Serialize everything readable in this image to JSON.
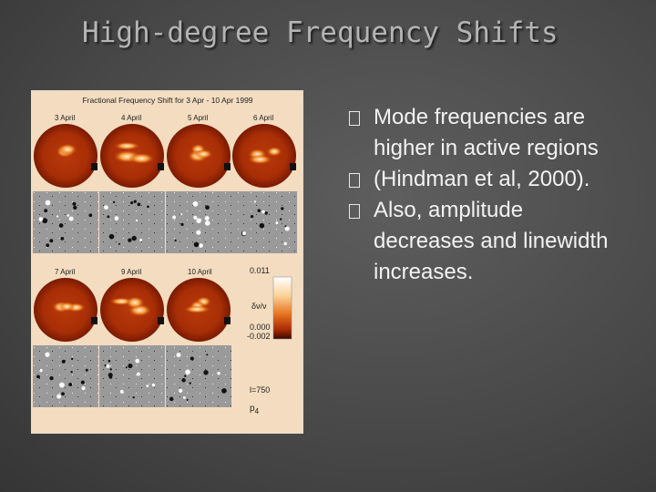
{
  "header": {
    "title": "High-degree Frequency Shifts"
  },
  "figure": {
    "title": "Fractional Frequency Shift for 3 Apr - 10 Apr 1999",
    "dates_top": [
      "3 April",
      "4 April",
      "5 April",
      "6 April"
    ],
    "dates_bottom": [
      "7 April",
      "9 April",
      "10 April"
    ],
    "colorbar": {
      "max": "0.011",
      "quantity": "δν/ν",
      "zero": "0.000",
      "min": "-0.002"
    },
    "degree": "l=750",
    "mode": {
      "letter": "p",
      "order": "4"
    }
  },
  "bullets": [
    "Mode frequencies are higher in active regions",
    "(Hindman et al, 2000).",
    "Also, amplitude decreases and linewidth increases."
  ]
}
